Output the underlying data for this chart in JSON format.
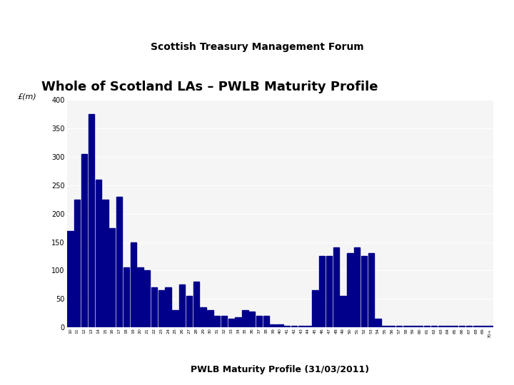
{
  "title": "Whole of Scotland LAs – PWLB Maturity Profile",
  "xlabel": "PWLB Maturity Profile (31/03/2011)",
  "ylabel": "£(m)",
  "bar_color": "#00008B",
  "ylim": [
    0,
    400
  ],
  "yticks": [
    0,
    50,
    100,
    150,
    200,
    250,
    300,
    350,
    400
  ],
  "background_color": "#ffffff",
  "header_bg": "#ffffff",
  "header_purple": "#6B2D8B",
  "header_text": "Scottish Treasury Management Forum",
  "categories": [
    "10",
    "11",
    "12",
    "13",
    "14",
    "15",
    "16",
    "17",
    "18",
    "19",
    "20",
    "21",
    "22",
    "23",
    "24",
    "25",
    "26",
    "27",
    "28",
    "29",
    "30",
    "31",
    "32",
    "33",
    "34",
    "35",
    "36",
    "37",
    "38",
    "39",
    "40",
    "41",
    "42",
    "43",
    "44",
    "45",
    "46",
    "47",
    "48",
    "49",
    "50",
    "51",
    "52",
    "53",
    "54",
    "55",
    "56",
    "57",
    "58",
    "59",
    "60",
    "61",
    "62",
    "63",
    "64",
    "65",
    "66",
    "67",
    "68",
    "69",
    "70+"
  ],
  "values": [
    170,
    225,
    305,
    375,
    260,
    225,
    175,
    230,
    105,
    150,
    105,
    100,
    70,
    65,
    70,
    30,
    75,
    55,
    80,
    35,
    30,
    20,
    20,
    15,
    18,
    30,
    28,
    20,
    20,
    5,
    5,
    2,
    2,
    2,
    2,
    65,
    125,
    125,
    140,
    55,
    130,
    140,
    125,
    130,
    15,
    2,
    2,
    2,
    2,
    2,
    2,
    2,
    2,
    2,
    2,
    2,
    2,
    2,
    2,
    2,
    2
  ]
}
